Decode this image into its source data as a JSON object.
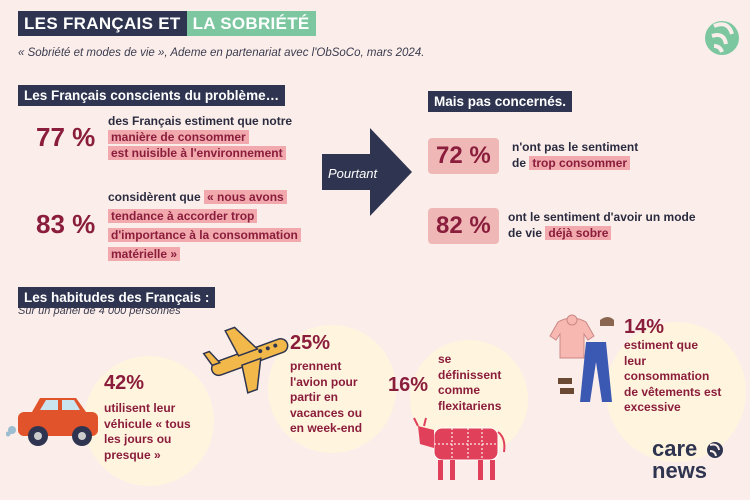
{
  "title": {
    "part1": "LES FRANÇAIS ET",
    "part2": "LA SOBRIÉTÉ"
  },
  "subtitle": "« Sobriété et modes de vie », Ademe en partenariat avec l'ObSoCo, mars 2024.",
  "left_section": {
    "header": "Les Français conscients du problème…",
    "stats": [
      {
        "value": "77 %",
        "text_plain": "des Français estiment que notre",
        "text_hl1": "manière de consommer",
        "text_hl2": "est nuisible à l'environnement"
      },
      {
        "value": "83 %",
        "text_plain": "considèrent que",
        "text_hl1": "« nous avons",
        "text_hl2": "tendance à accorder trop",
        "text_hl3": "d'importance à la consommation",
        "text_hl4": "matérielle »"
      }
    ]
  },
  "arrow_label": "Pourtant",
  "right_section": {
    "header": "Mais pas concernés.",
    "stats": [
      {
        "value": "72 %",
        "text_plain1": "n'ont pas le sentiment",
        "text_plain2": "de",
        "text_hl": "trop consommer"
      },
      {
        "value": "82 %",
        "text_plain1": "ont le sentiment d'avoir un mode",
        "text_plain2": "de vie",
        "text_hl": "déjà sobre"
      }
    ]
  },
  "habits": {
    "header": "Les habitudes des Français :",
    "panel": "Sur un panel de 4 000 personnes",
    "items": [
      {
        "pct": "42%",
        "lines": [
          "utilisent leur",
          "véhicule « tous",
          "les jours ou",
          "presque »"
        ],
        "icon": "car-icon"
      },
      {
        "pct": "25%",
        "lines": [
          "prennent",
          "l'avion pour",
          "partir en",
          "vacances ou",
          "en week-end"
        ],
        "icon": "airplane-icon"
      },
      {
        "pct": "16%",
        "lines": [
          "se",
          "définissent",
          "comme",
          "flexitariens"
        ],
        "icon": "cow-icon"
      },
      {
        "pct": "14%",
        "lines": [
          "estiment que",
          "leur",
          "consommation",
          "de vêtements est",
          "excessive"
        ],
        "icon": "clothes-icon"
      }
    ]
  },
  "brand": {
    "line1": "care",
    "line2": "news"
  },
  "colors": {
    "navy": "#2f3550",
    "green": "#7cc7a0",
    "burgundy": "#8a1d3c",
    "pink": "#efb7b6",
    "bg": "#fbeeea",
    "cream": "#fff4dd"
  }
}
